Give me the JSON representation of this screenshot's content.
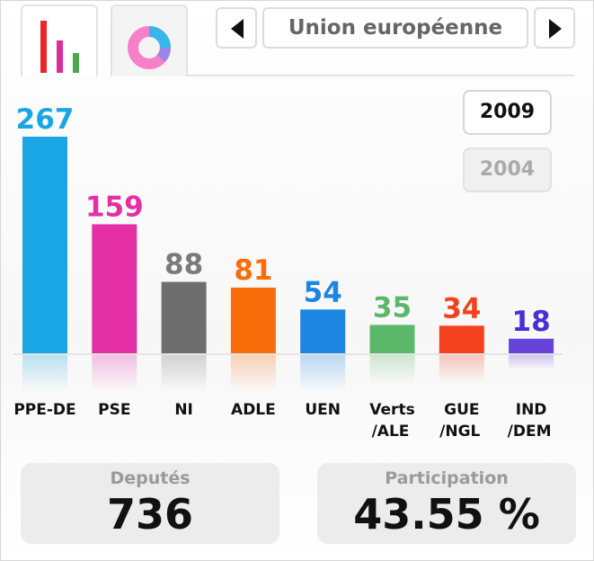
{
  "tabs": {
    "bar_icon": "bar-chart-icon",
    "pie_icon": "pie-chart-icon"
  },
  "navigation": {
    "region_label": "Union européenne",
    "prev_icon": "arrow-left-icon",
    "next_icon": "arrow-right-icon"
  },
  "years": {
    "selected": "2009",
    "other": "2004"
  },
  "chart_data": {
    "type": "bar",
    "categories": [
      "PPE-DE",
      "PSE",
      "NI",
      "ADLE",
      "UEN",
      "Verts /ALE",
      "GUE /NGL",
      "IND /DEM"
    ],
    "category_lines": [
      [
        "PPE-DE"
      ],
      [
        "PSE"
      ],
      [
        "NI"
      ],
      [
        "ADLE"
      ],
      [
        "UEN"
      ],
      [
        "Verts",
        "/ALE"
      ],
      [
        "GUE",
        "/NGL"
      ],
      [
        "IND",
        "/DEM"
      ]
    ],
    "values": [
      267,
      159,
      88,
      81,
      54,
      35,
      34,
      18
    ],
    "colors": [
      "#1aa6e4",
      "#e52fa4",
      "#6e6e6e",
      "#f96e0a",
      "#1c86e2",
      "#5bb86a",
      "#f3411e",
      "#6644dc"
    ],
    "label_colors": [
      "#1aa6e4",
      "#e52fa4",
      "#7a7a7a",
      "#f96e0a",
      "#1c86e2",
      "#5bb86a",
      "#f3411e",
      "#4a2ed6"
    ],
    "ylim": [
      0,
      267
    ],
    "grid": false,
    "legend": "none"
  },
  "stats": {
    "deputes_label": "Deputés",
    "deputes_value": "736",
    "participation_label": "Participation",
    "participation_value": "43.55 %"
  }
}
